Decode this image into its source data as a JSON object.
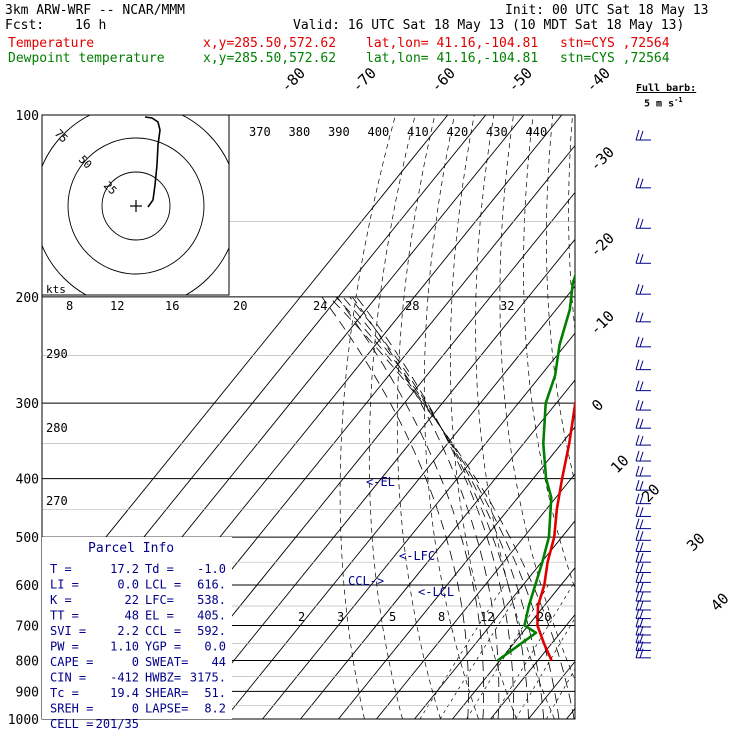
{
  "header": {
    "model": "3km ARW-WRF -- NCAR/MMM",
    "init": "Init: 00 UTC Sat 18 May 13",
    "fcst_label": "Fcst:",
    "fcst_value": "16 h",
    "valid": "Valid: 16 UTC Sat 18 May 13 (10 MDT Sat 18 May 13)",
    "temp_label": "Temperature",
    "dew_label": "Dewpoint temperature",
    "xy": "x,y=285.50,572.62",
    "latlon": "lat,lon= 41.16,-104.81",
    "stn": "stn=CYS ,72564"
  },
  "barb_legend": {
    "line1": "Full barb:",
    "line2": "5 m s",
    "sup": "-1"
  },
  "hodograph": {
    "kts_label": "kts",
    "ring_labels": [
      "25",
      "50",
      "75"
    ]
  },
  "parcel_info": {
    "title": "Parcel Info",
    "rows": [
      [
        "T  =",
        "17.2",
        "Td =",
        "-1.0"
      ],
      [
        "LI =",
        "0.0",
        "LCL =",
        "616."
      ],
      [
        "K  =",
        "22",
        "LFC=",
        "538."
      ],
      [
        "TT =",
        "48",
        "EL =",
        "405."
      ],
      [
        "SVI =",
        "2.2",
        "CCL =",
        "592."
      ],
      [
        "PW =",
        "1.10",
        "YGP =",
        "0.0"
      ],
      [
        "CAPE =",
        "0",
        "SWEAT=",
        "44"
      ],
      [
        "CIN =",
        "-412",
        "HWBZ=",
        "3175."
      ],
      [
        "Tc =",
        "19.4",
        "SHEAR=",
        "51."
      ],
      [
        "SREH =",
        "0",
        "LAPSE=",
        "8.2"
      ],
      [
        "CELL =",
        "201/35",
        "",
        ""
      ]
    ]
  },
  "level_labels": {
    "el": "<-EL",
    "lfc": "<-LFC",
    "ccl": "CCL->",
    "lcl": "<-LCL"
  },
  "chart_data": {
    "type": "line",
    "y_axis": {
      "scale": "log-pressure",
      "unit": "hPa",
      "range": [
        1000,
        100
      ],
      "ticks": [
        100,
        200,
        300,
        400,
        500,
        600,
        700,
        800,
        900,
        1000
      ]
    },
    "isotherm_labels": [
      "-80",
      "-70",
      "-60",
      "-50",
      "-40",
      "-30",
      "-20",
      "-10",
      "0",
      "10",
      "20",
      "30",
      "40"
    ],
    "dry_adiabat_labels": [
      "370",
      "380",
      "390",
      "400",
      "410",
      "420",
      "430",
      "440"
    ],
    "theta_left_labels": [
      "290",
      "280",
      "270"
    ],
    "mixing_ratio_labels_top": [
      "8",
      "12",
      "16",
      "20",
      "24",
      "28",
      "32"
    ],
    "mixing_ratio_labels_low": [
      "2",
      "3",
      "5",
      "8",
      "12",
      "20"
    ],
    "series": [
      {
        "name": "Temperature",
        "color": "#e00000",
        "points": [
          [
            800,
            13.6
          ],
          [
            750,
            8.0
          ],
          [
            700,
            2.4
          ],
          [
            650,
            -1.6
          ],
          [
            600,
            -4.4
          ],
          [
            550,
            -8.4
          ],
          [
            500,
            -12.0
          ],
          [
            450,
            -17.2
          ],
          [
            400,
            -22.4
          ],
          [
            350,
            -28.0
          ],
          [
            300,
            -35.0
          ],
          [
            250,
            -42.4
          ],
          [
            220,
            -48.6
          ],
          [
            200,
            -52.4
          ],
          [
            180,
            -55.4
          ],
          [
            160,
            -58.2
          ],
          [
            140,
            -59.6
          ],
          [
            125,
            -60.4
          ],
          [
            100,
            -62.0
          ]
        ]
      },
      {
        "name": "Dewpoint temperature",
        "color": "#007f00",
        "points": [
          [
            800,
            -0.6
          ],
          [
            720,
            3.6
          ],
          [
            700,
            -1.0
          ],
          [
            650,
            -4.0
          ],
          [
            550,
            -9.8
          ],
          [
            500,
            -13.4
          ],
          [
            430,
            -21.2
          ],
          [
            400,
            -26.6
          ],
          [
            350,
            -34.8
          ],
          [
            300,
            -42.8
          ],
          [
            270,
            -46.2
          ],
          [
            240,
            -51.6
          ],
          [
            210,
            -56.4
          ],
          [
            190,
            -61.2
          ],
          [
            170,
            -65.0
          ],
          [
            155,
            -68.2
          ],
          [
            130,
            -72.2
          ],
          [
            110,
            -76.6
          ],
          [
            100,
            -77.8
          ]
        ]
      }
    ]
  }
}
